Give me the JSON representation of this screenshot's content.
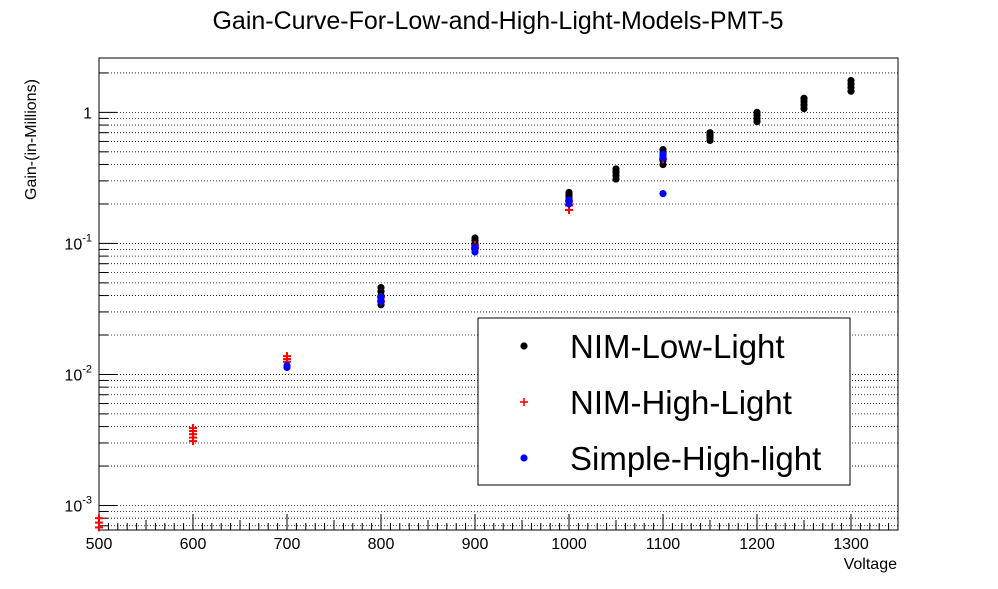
{
  "chart_data": {
    "type": "scatter",
    "title": "Gain-Curve-For-Low-and-High-Light-Models-PMT-5",
    "xlabel": "Voltage",
    "ylabel": "Gain-(in-Millions)",
    "xlim": [
      500,
      1350
    ],
    "ylim": [
      0.00065,
      2.6
    ],
    "yscale": "log",
    "grid": "horizontal",
    "legend_position": "bottom-right",
    "x_ticks": [
      "500",
      "600",
      "700",
      "800",
      "900",
      "1000",
      "1100",
      "1200",
      "1300"
    ],
    "y_ticks": [
      {
        "base": "10",
        "exp": "-3"
      },
      {
        "base": "10",
        "exp": "-2"
      },
      {
        "base": "10",
        "exp": "-1"
      },
      {
        "base": "1",
        "exp": ""
      }
    ],
    "series": [
      {
        "name": "NIM-Low-Light",
        "color": "#000000",
        "marker": "circle",
        "points": [
          [
            800,
            0.034
          ],
          [
            800,
            0.037
          ],
          [
            800,
            0.04
          ],
          [
            800,
            0.043
          ],
          [
            800,
            0.046
          ],
          [
            900,
            0.095
          ],
          [
            900,
            0.1
          ],
          [
            900,
            0.105
          ],
          [
            900,
            0.11
          ],
          [
            1000,
            0.205
          ],
          [
            1000,
            0.215
          ],
          [
            1000,
            0.225
          ],
          [
            1000,
            0.235
          ],
          [
            1000,
            0.245
          ],
          [
            1050,
            0.31
          ],
          [
            1050,
            0.33
          ],
          [
            1050,
            0.35
          ],
          [
            1050,
            0.37
          ],
          [
            1100,
            0.4
          ],
          [
            1100,
            0.43
          ],
          [
            1100,
            0.46
          ],
          [
            1100,
            0.49
          ],
          [
            1100,
            0.52
          ],
          [
            1150,
            0.61
          ],
          [
            1150,
            0.64
          ],
          [
            1150,
            0.67
          ],
          [
            1150,
            0.7
          ],
          [
            1200,
            0.85
          ],
          [
            1200,
            0.9
          ],
          [
            1200,
            0.95
          ],
          [
            1200,
            1.0
          ],
          [
            1250,
            1.07
          ],
          [
            1250,
            1.14
          ],
          [
            1250,
            1.21
          ],
          [
            1250,
            1.28
          ],
          [
            1300,
            1.45
          ],
          [
            1300,
            1.55
          ],
          [
            1300,
            1.65
          ],
          [
            1300,
            1.75
          ]
        ]
      },
      {
        "name": "NIM-High-Light",
        "color": "#ff0000",
        "marker": "plus",
        "points": [
          [
            500,
            0.00068
          ],
          [
            500,
            0.00074
          ],
          [
            500,
            0.0008
          ],
          [
            600,
            0.0031
          ],
          [
            600,
            0.0033
          ],
          [
            600,
            0.0035
          ],
          [
            600,
            0.0037
          ],
          [
            600,
            0.0039
          ],
          [
            700,
            0.0125
          ],
          [
            700,
            0.0131
          ],
          [
            700,
            0.0138
          ],
          [
            800,
            0.036
          ],
          [
            800,
            0.039
          ],
          [
            900,
            0.092
          ],
          [
            900,
            0.097
          ],
          [
            1000,
            0.18
          ],
          [
            1000,
            0.195
          ],
          [
            1000,
            0.21
          ],
          [
            1100,
            0.44
          ]
        ]
      },
      {
        "name": "Simple-High-light",
        "color": "#0000ff",
        "marker": "circle",
        "points": [
          [
            700,
            0.0113
          ],
          [
            700,
            0.0117
          ],
          [
            800,
            0.036
          ],
          [
            800,
            0.039
          ],
          [
            900,
            0.086
          ],
          [
            900,
            0.09
          ],
          [
            900,
            0.094
          ],
          [
            1000,
            0.2
          ],
          [
            1000,
            0.215
          ],
          [
            1100,
            0.24
          ],
          [
            1100,
            0.45
          ],
          [
            1100,
            0.48
          ]
        ]
      }
    ]
  }
}
